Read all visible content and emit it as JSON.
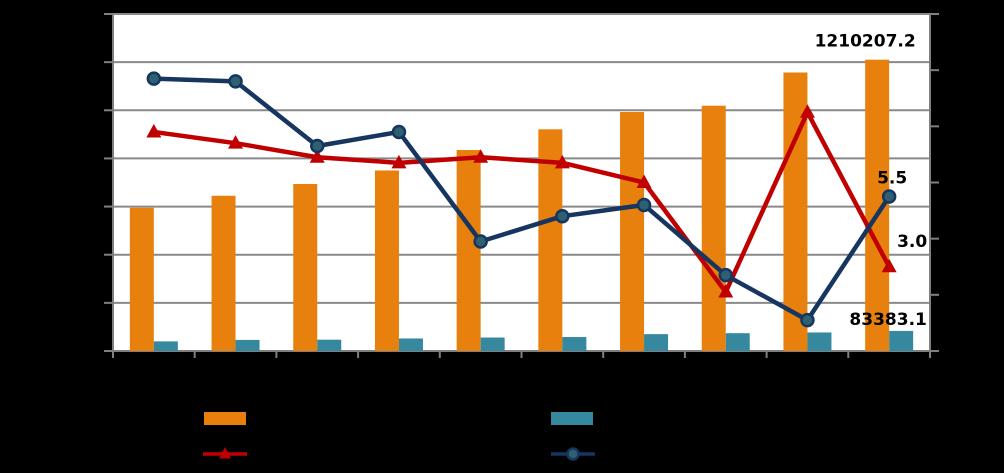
{
  "chart_data": {
    "type": "combo-bar-line",
    "title": "",
    "background_color": "#000000",
    "plot_background_color": "#FFFFFF",
    "gridline_color": "#898989",
    "axis_color": "#7F7F7F",
    "grid": true,
    "categories": [
      "",
      "",
      "",
      "",
      "",
      "",
      "",
      "",
      "",
      ""
    ],
    "category_tick_labels_visible": false,
    "series": [
      {
        "id": "orange-bars",
        "type": "bar",
        "axis": "left",
        "color": "#E8800E",
        "values": [
          595000,
          645000,
          694000,
          750000,
          835000,
          921000,
          993000,
          1019000,
          1157000,
          1210207.2
        ]
      },
      {
        "id": "teal-bars",
        "type": "bar",
        "axis": "left",
        "color": "#35889E",
        "values": [
          40000,
          46000,
          47000,
          52000,
          56000,
          58000,
          70000,
          74000,
          77000,
          83383.1
        ]
      },
      {
        "id": "red-line",
        "type": "line",
        "axis": "right",
        "color": "#C00000",
        "marker": "triangle",
        "values": [
          7.8,
          7.4,
          6.9,
          6.7,
          6.9,
          6.7,
          6.0,
          2.1,
          8.5,
          3.0
        ]
      },
      {
        "id": "navy-line",
        "type": "line",
        "axis": "right",
        "color": "#16365F",
        "marker": "circle",
        "marker_fill": "#2E6072",
        "values": [
          9.7,
          9.6,
          7.3,
          7.8,
          3.9,
          4.8,
          5.2,
          2.7,
          1.1,
          5.5
        ]
      }
    ],
    "axes": {
      "left": {
        "min": 0,
        "max": 1400000,
        "major_unit": 200000,
        "tick_labels_visible": false
      },
      "right": {
        "min": 0,
        "max": 12,
        "major_unit": 2,
        "tick_labels_visible": false
      }
    },
    "point_labels": [
      {
        "series": "orange-bars",
        "index": 9,
        "text": "1210207.2"
      },
      {
        "series": "navy-line",
        "index": 9,
        "text": "5.5"
      },
      {
        "series": "red-line",
        "index": 9,
        "text": "3.0"
      },
      {
        "series": "teal-bars",
        "index": 9,
        "text": "83383.1"
      }
    ],
    "point_label_color": "#000000",
    "legend": {
      "position": "bottom",
      "labels_visible": false,
      "entries": [
        {
          "swatch": "bar",
          "color": "#E8800E",
          "label": ""
        },
        {
          "swatch": "line-triangle",
          "color": "#C00000",
          "label": ""
        },
        {
          "swatch": "bar",
          "color": "#35889E",
          "label": ""
        },
        {
          "swatch": "line-circle",
          "color": "#16365F",
          "label": ""
        }
      ]
    }
  }
}
